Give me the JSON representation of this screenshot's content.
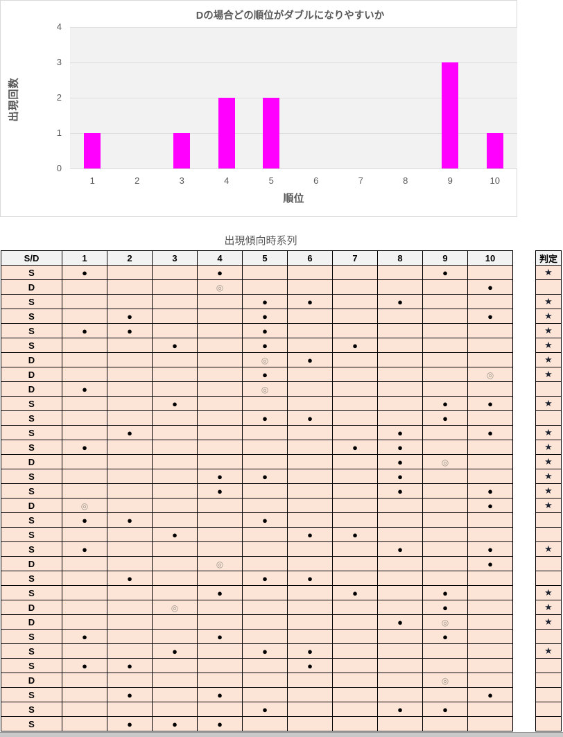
{
  "chart": {
    "title": "Dの場合どの順位がダブルになりやすいか",
    "xlabel": "順位",
    "ylabel": "出現回数",
    "y_ticks": [
      0,
      1,
      2,
      3,
      4
    ],
    "bar_color": "#ff00ff",
    "plot_bg": "#f2f2f2",
    "text_color": "#595959"
  },
  "chart_data": {
    "type": "bar",
    "categories": [
      "1",
      "2",
      "3",
      "4",
      "5",
      "6",
      "7",
      "8",
      "9",
      "10"
    ],
    "values": [
      1,
      0,
      1,
      2,
      2,
      0,
      0,
      0,
      3,
      1
    ],
    "title": "Dの場合どの順位がダブルになりやすいか",
    "xlabel": "順位",
    "ylabel": "出現回数",
    "ylim": [
      0,
      4
    ],
    "grid": true,
    "legend": "none"
  },
  "table": {
    "title": "出現傾向時系列",
    "sd_header": "S/D",
    "col_headers": [
      "1",
      "2",
      "3",
      "4",
      "5",
      "6",
      "7",
      "8",
      "9",
      "10"
    ],
    "judge_header": "判定",
    "symbols": {
      "filled_dot": "●",
      "double_circle": "◎",
      "star": "★"
    },
    "rows": [
      {
        "sd": "S",
        "cells": [
          "●",
          "",
          "",
          "●",
          "",
          "",
          "",
          "",
          "●",
          ""
        ],
        "star": "★"
      },
      {
        "sd": "D",
        "cells": [
          "",
          "",
          "",
          "◎",
          "",
          "",
          "",
          "",
          "",
          "●"
        ],
        "star": ""
      },
      {
        "sd": "S",
        "cells": [
          "",
          "",
          "",
          "",
          "●",
          "●",
          "",
          "●",
          "",
          ""
        ],
        "star": "★"
      },
      {
        "sd": "S",
        "cells": [
          "",
          "●",
          "",
          "",
          "●",
          "",
          "",
          "",
          "",
          "●"
        ],
        "star": "★"
      },
      {
        "sd": "S",
        "cells": [
          "●",
          "●",
          "",
          "",
          "●",
          "",
          "",
          "",
          "",
          ""
        ],
        "star": "★"
      },
      {
        "sd": "S",
        "cells": [
          "",
          "",
          "●",
          "",
          "●",
          "",
          "●",
          "",
          "",
          ""
        ],
        "star": "★"
      },
      {
        "sd": "D",
        "cells": [
          "",
          "",
          "",
          "",
          "◎",
          "●",
          "",
          "",
          "",
          ""
        ],
        "star": "★"
      },
      {
        "sd": "D",
        "cells": [
          "",
          "",
          "",
          "",
          "●",
          "",
          "",
          "",
          "",
          "◎"
        ],
        "star": "★"
      },
      {
        "sd": "D",
        "cells": [
          "●",
          "",
          "",
          "",
          "◎",
          "",
          "",
          "",
          "",
          ""
        ],
        "star": ""
      },
      {
        "sd": "S",
        "cells": [
          "",
          "",
          "●",
          "",
          "",
          "",
          "",
          "",
          "●",
          "●"
        ],
        "star": "★"
      },
      {
        "sd": "S",
        "cells": [
          "",
          "",
          "",
          "",
          "●",
          "●",
          "",
          "",
          "●",
          ""
        ],
        "star": ""
      },
      {
        "sd": "S",
        "cells": [
          "",
          "●",
          "",
          "",
          "",
          "",
          "",
          "●",
          "",
          "●"
        ],
        "star": "★"
      },
      {
        "sd": "S",
        "cells": [
          "●",
          "",
          "",
          "",
          "",
          "",
          "●",
          "●",
          "",
          ""
        ],
        "star": "★"
      },
      {
        "sd": "D",
        "cells": [
          "",
          "",
          "",
          "",
          "",
          "",
          "",
          "●",
          "◎",
          ""
        ],
        "star": "★"
      },
      {
        "sd": "S",
        "cells": [
          "",
          "",
          "",
          "●",
          "●",
          "",
          "",
          "●",
          "",
          ""
        ],
        "star": "★"
      },
      {
        "sd": "S",
        "cells": [
          "",
          "",
          "",
          "●",
          "",
          "",
          "",
          "●",
          "",
          "●"
        ],
        "star": "★"
      },
      {
        "sd": "D",
        "cells": [
          "◎",
          "",
          "",
          "",
          "",
          "",
          "",
          "",
          "",
          "●"
        ],
        "star": "★"
      },
      {
        "sd": "S",
        "cells": [
          "●",
          "●",
          "",
          "",
          "●",
          "",
          "",
          "",
          "",
          ""
        ],
        "star": ""
      },
      {
        "sd": "S",
        "cells": [
          "",
          "",
          "●",
          "",
          "",
          "●",
          "●",
          "",
          "",
          ""
        ],
        "star": ""
      },
      {
        "sd": "S",
        "cells": [
          "●",
          "",
          "",
          "",
          "",
          "",
          "",
          "●",
          "",
          "●"
        ],
        "star": "★"
      },
      {
        "sd": "D",
        "cells": [
          "",
          "",
          "",
          "◎",
          "",
          "",
          "",
          "",
          "",
          "●"
        ],
        "star": ""
      },
      {
        "sd": "S",
        "cells": [
          "",
          "●",
          "",
          "",
          "●",
          "●",
          "",
          "",
          "",
          ""
        ],
        "star": ""
      },
      {
        "sd": "S",
        "cells": [
          "",
          "",
          "",
          "●",
          "",
          "",
          "●",
          "",
          "●",
          ""
        ],
        "star": "★"
      },
      {
        "sd": "D",
        "cells": [
          "",
          "",
          "◎",
          "",
          "",
          "",
          "",
          "",
          "●",
          ""
        ],
        "star": "★"
      },
      {
        "sd": "D",
        "cells": [
          "",
          "",
          "",
          "",
          "",
          "",
          "",
          "●",
          "◎",
          ""
        ],
        "star": "★"
      },
      {
        "sd": "S",
        "cells": [
          "●",
          "",
          "",
          "●",
          "",
          "",
          "",
          "",
          "●",
          ""
        ],
        "star": ""
      },
      {
        "sd": "S",
        "cells": [
          "",
          "",
          "●",
          "",
          "●",
          "●",
          "",
          "",
          "",
          ""
        ],
        "star": "★"
      },
      {
        "sd": "S",
        "cells": [
          "●",
          "●",
          "",
          "",
          "",
          "●",
          "",
          "",
          "",
          ""
        ],
        "star": ""
      },
      {
        "sd": "D",
        "cells": [
          "",
          "",
          "",
          "",
          "",
          "",
          "",
          "",
          "◎",
          ""
        ],
        "star": ""
      },
      {
        "sd": "S",
        "cells": [
          "",
          "●",
          "",
          "●",
          "",
          "",
          "",
          "",
          "",
          "●"
        ],
        "star": ""
      },
      {
        "sd": "S",
        "cells": [
          "",
          "",
          "",
          "",
          "●",
          "",
          "",
          "●",
          "●",
          ""
        ],
        "star": ""
      },
      {
        "sd": "S",
        "cells": [
          "",
          "●",
          "●",
          "●",
          "",
          "",
          "",
          "",
          "",
          ""
        ],
        "star": ""
      }
    ]
  }
}
